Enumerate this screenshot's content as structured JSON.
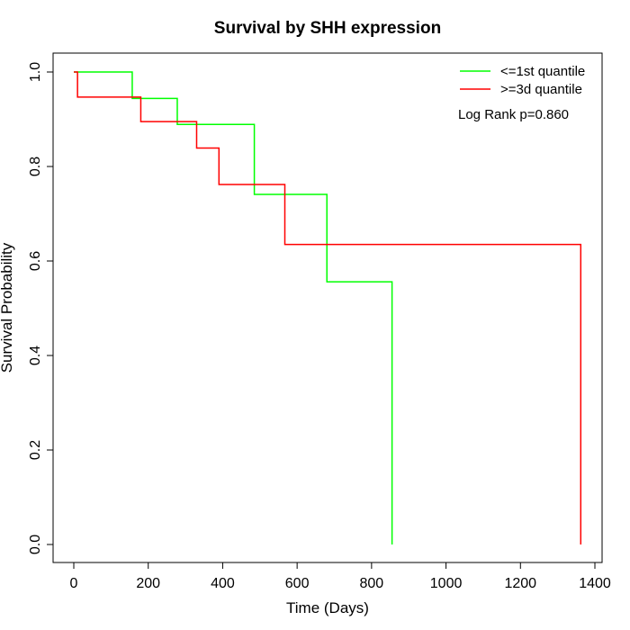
{
  "chart_data": {
    "type": "line",
    "subtype": "kaplan-meier-step",
    "title": "Survival by SHH expression",
    "xlabel": "Time (Days)",
    "ylabel": "Survival Probability",
    "xlim": [
      0,
      1400
    ],
    "ylim": [
      0,
      1
    ],
    "x_ticks": [
      0,
      200,
      400,
      600,
      800,
      1000,
      1200,
      1400
    ],
    "y_ticks": [
      0.0,
      0.2,
      0.4,
      0.6,
      0.8,
      1.0
    ],
    "x_tick_labels": [
      "0",
      "200",
      "400",
      "600",
      "800",
      "1000",
      "1200",
      "1400"
    ],
    "y_tick_labels": [
      "0.0",
      "0.2",
      "0.4",
      "0.6",
      "0.8",
      "1.0"
    ],
    "grid": false,
    "legend_position": "top-right",
    "annotation": "Log Rank p=0.860",
    "series": [
      {
        "name": "<=1st quantile",
        "color": "#00ff00",
        "times": [
          0,
          157,
          278,
          485,
          680,
          855
        ],
        "survival": [
          1.0,
          0.944,
          0.889,
          0.741,
          0.556,
          0.0
        ]
      },
      {
        "name": ">=3d quantile",
        "color": "#ff0000",
        "times": [
          0,
          10,
          180,
          330,
          390,
          567,
          1362
        ],
        "survival": [
          1.0,
          0.947,
          0.895,
          0.839,
          0.762,
          0.635,
          0.0
        ]
      }
    ]
  }
}
